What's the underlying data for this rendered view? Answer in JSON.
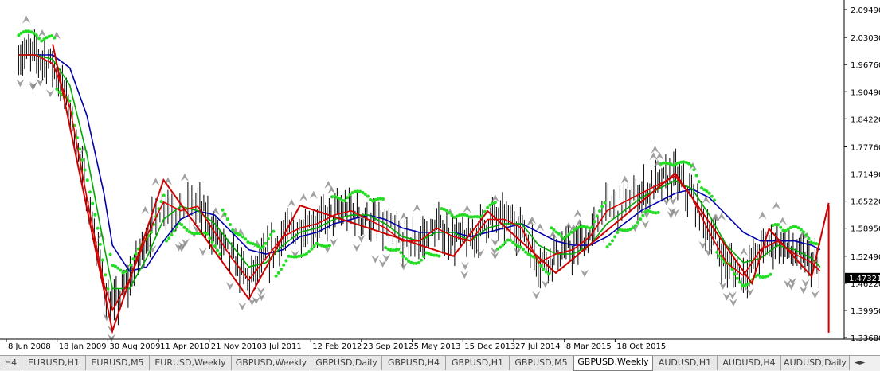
{
  "window": {
    "title": "GBPUSD,Weekly"
  },
  "price_axis": {
    "labels": [
      "2.09490",
      "2.03030",
      "1.96760",
      "1.90490",
      "1.84220",
      "1.77760",
      "1.71490",
      "1.65220",
      "1.58950",
      "1.52490",
      "1.46220",
      "1.39950",
      "1.33680"
    ],
    "current_price": "1.47321"
  },
  "time_axis": {
    "labels": [
      "8 Jun 2008",
      "18 Jan 2009",
      "30 Aug 2009",
      "11 Apr 2010",
      "21 Nov 2010",
      "3 Jul 2011",
      "12 Feb 2012",
      "23 Sep 2012",
      "5 May 2013",
      "15 Dec 2013",
      "27 Jul 2014",
      "8 Mar 2015",
      "18 Oct 2015"
    ]
  },
  "tabs": [
    {
      "label": "H4",
      "active": false
    },
    {
      "label": "EURUSD,H1",
      "active": false
    },
    {
      "label": "EURUSD,M5",
      "active": false
    },
    {
      "label": "EURUSD,Weekly",
      "active": false
    },
    {
      "label": "GBPUSD,Weekly",
      "active": false
    },
    {
      "label": "GBPUSD,Daily",
      "active": false
    },
    {
      "label": "GBPUSD,H4",
      "active": false
    },
    {
      "label": "GBPUSD,H1",
      "active": false
    },
    {
      "label": "GBPUSD,M5",
      "active": false
    },
    {
      "label": "GBPUSD,Weekly",
      "active": true
    },
    {
      "label": "AUDUSD,H1",
      "active": false
    },
    {
      "label": "AUDUSD,H4",
      "active": false
    },
    {
      "label": "AUDUSD,Daily",
      "active": false
    }
  ],
  "colors": {
    "ma_slow": "#0000aa",
    "ma_mid": "#00aa00",
    "ma_fast": "#dd0000",
    "zigzag": "#cc0000",
    "dots": "#22dd22",
    "bars": "#000000",
    "fractal": "#808080"
  },
  "chart_data": {
    "type": "line",
    "symbol": "GBPUSD",
    "timeframe": "Weekly",
    "ylim": [
      1.3368,
      2.0949
    ],
    "x": [
      "2008-02",
      "2008-04",
      "2008-06",
      "2008-08",
      "2008-10",
      "2008-12",
      "2009-01",
      "2009-03",
      "2009-05",
      "2009-07",
      "2009-09",
      "2009-11",
      "2010-01",
      "2010-03",
      "2010-05",
      "2010-07",
      "2010-09",
      "2010-11",
      "2011-01",
      "2011-03",
      "2011-05",
      "2011-07",
      "2011-09",
      "2011-11",
      "2012-01",
      "2012-03",
      "2012-05",
      "2012-07",
      "2012-09",
      "2012-11",
      "2013-01",
      "2013-03",
      "2013-05",
      "2013-07",
      "2013-09",
      "2013-11",
      "2014-01",
      "2014-03",
      "2014-05",
      "2014-07",
      "2014-09",
      "2014-11",
      "2015-01",
      "2015-03",
      "2015-05",
      "2015-07",
      "2015-09",
      "2015-11",
      "2015-12"
    ],
    "series": [
      {
        "values": [
          1.99,
          1.99,
          1.97,
          1.87,
          1.66,
          1.46,
          1.4,
          1.47,
          1.57,
          1.65,
          1.63,
          1.64,
          1.58,
          1.52,
          1.47,
          1.52,
          1.57,
          1.59,
          1.6,
          1.62,
          1.63,
          1.61,
          1.59,
          1.56,
          1.56,
          1.59,
          1.57,
          1.56,
          1.61,
          1.61,
          1.59,
          1.51,
          1.53,
          1.54,
          1.57,
          1.63,
          1.65,
          1.67,
          1.69,
          1.71,
          1.66,
          1.58,
          1.51,
          1.48,
          1.54,
          1.56,
          1.53,
          1.51,
          1.49
        ]
      },
      {
        "values": [
          1.99,
          1.99,
          1.98,
          1.92,
          1.76,
          1.55,
          1.45,
          1.45,
          1.52,
          1.61,
          1.64,
          1.63,
          1.6,
          1.55,
          1.5,
          1.51,
          1.55,
          1.58,
          1.59,
          1.61,
          1.62,
          1.62,
          1.6,
          1.57,
          1.56,
          1.58,
          1.58,
          1.56,
          1.59,
          1.6,
          1.6,
          1.55,
          1.53,
          1.53,
          1.55,
          1.6,
          1.63,
          1.66,
          1.68,
          1.7,
          1.68,
          1.62,
          1.55,
          1.51,
          1.52,
          1.55,
          1.54,
          1.52,
          1.5
        ]
      },
      {
        "values": [
          1.99,
          1.99,
          1.99,
          1.96,
          1.85,
          1.67,
          1.55,
          1.49,
          1.5,
          1.56,
          1.61,
          1.63,
          1.62,
          1.58,
          1.54,
          1.53,
          1.54,
          1.57,
          1.58,
          1.6,
          1.61,
          1.62,
          1.61,
          1.59,
          1.58,
          1.58,
          1.58,
          1.57,
          1.58,
          1.59,
          1.6,
          1.58,
          1.56,
          1.55,
          1.55,
          1.57,
          1.6,
          1.63,
          1.65,
          1.67,
          1.68,
          1.66,
          1.62,
          1.58,
          1.56,
          1.56,
          1.56,
          1.55,
          1.54
        ]
      }
    ],
    "zigzag": [
      {
        "x": "2008-06",
        "y": 2.015
      },
      {
        "x": "2009-01",
        "y": 1.352
      },
      {
        "x": "2009-07",
        "y": 1.701
      },
      {
        "x": "2010-05",
        "y": 1.426
      },
      {
        "x": "2010-11",
        "y": 1.642
      },
      {
        "x": "2012-05",
        "y": 1.525
      },
      {
        "x": "2012-09",
        "y": 1.629
      },
      {
        "x": "2013-05",
        "y": 1.486
      },
      {
        "x": "2014-07",
        "y": 1.716
      },
      {
        "x": "2015-04",
        "y": 1.462
      },
      {
        "x": "2015-06",
        "y": 1.588
      },
      {
        "x": "2015-11",
        "y": 1.478
      },
      {
        "x": "2016-01",
        "y": 1.648
      }
    ],
    "vertical_line": {
      "x": "2016-01",
      "y_top": 1.643,
      "y_bottom": 1.348
    }
  }
}
